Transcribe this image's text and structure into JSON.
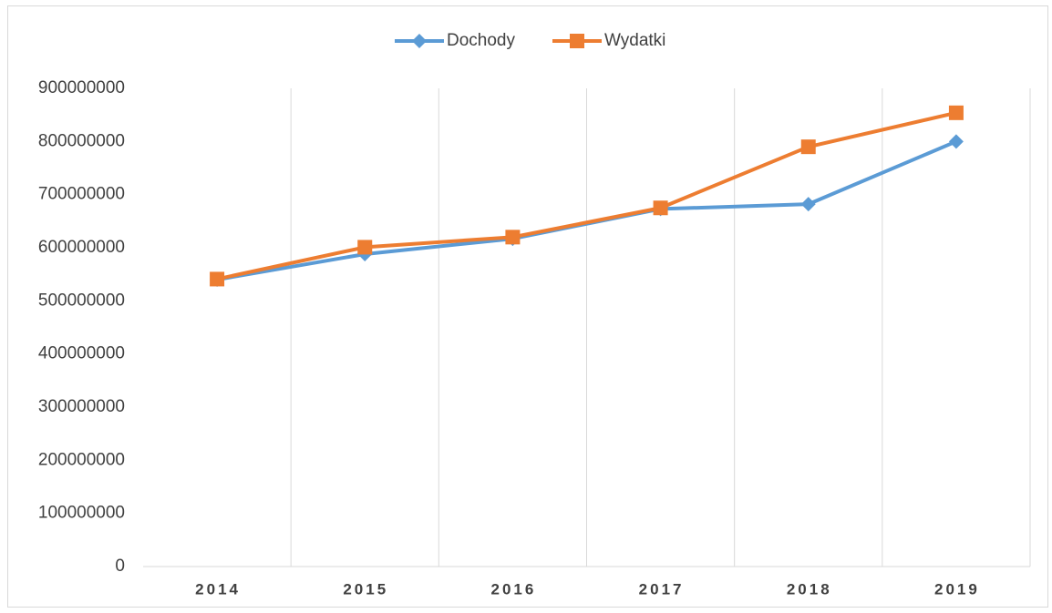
{
  "chart_data": {
    "type": "line",
    "categories": [
      "2014",
      "2015",
      "2016",
      "2017",
      "2018",
      "2019"
    ],
    "series": [
      {
        "name": "Dochody",
        "color": "#5b9bd5",
        "marker": "diamond",
        "values": [
          540000000,
          588000000,
          617000000,
          673000000,
          682000000,
          800000000
        ]
      },
      {
        "name": "Wydatki",
        "color": "#ed7d31",
        "marker": "square",
        "values": [
          541000000,
          601000000,
          620000000,
          675000000,
          790000000,
          854000000
        ]
      }
    ],
    "ylim": [
      0,
      900000000
    ],
    "yticks": [
      0,
      100000000,
      200000000,
      300000000,
      400000000,
      500000000,
      600000000,
      700000000,
      800000000,
      900000000
    ],
    "grid": "vertical",
    "legend": "top"
  }
}
